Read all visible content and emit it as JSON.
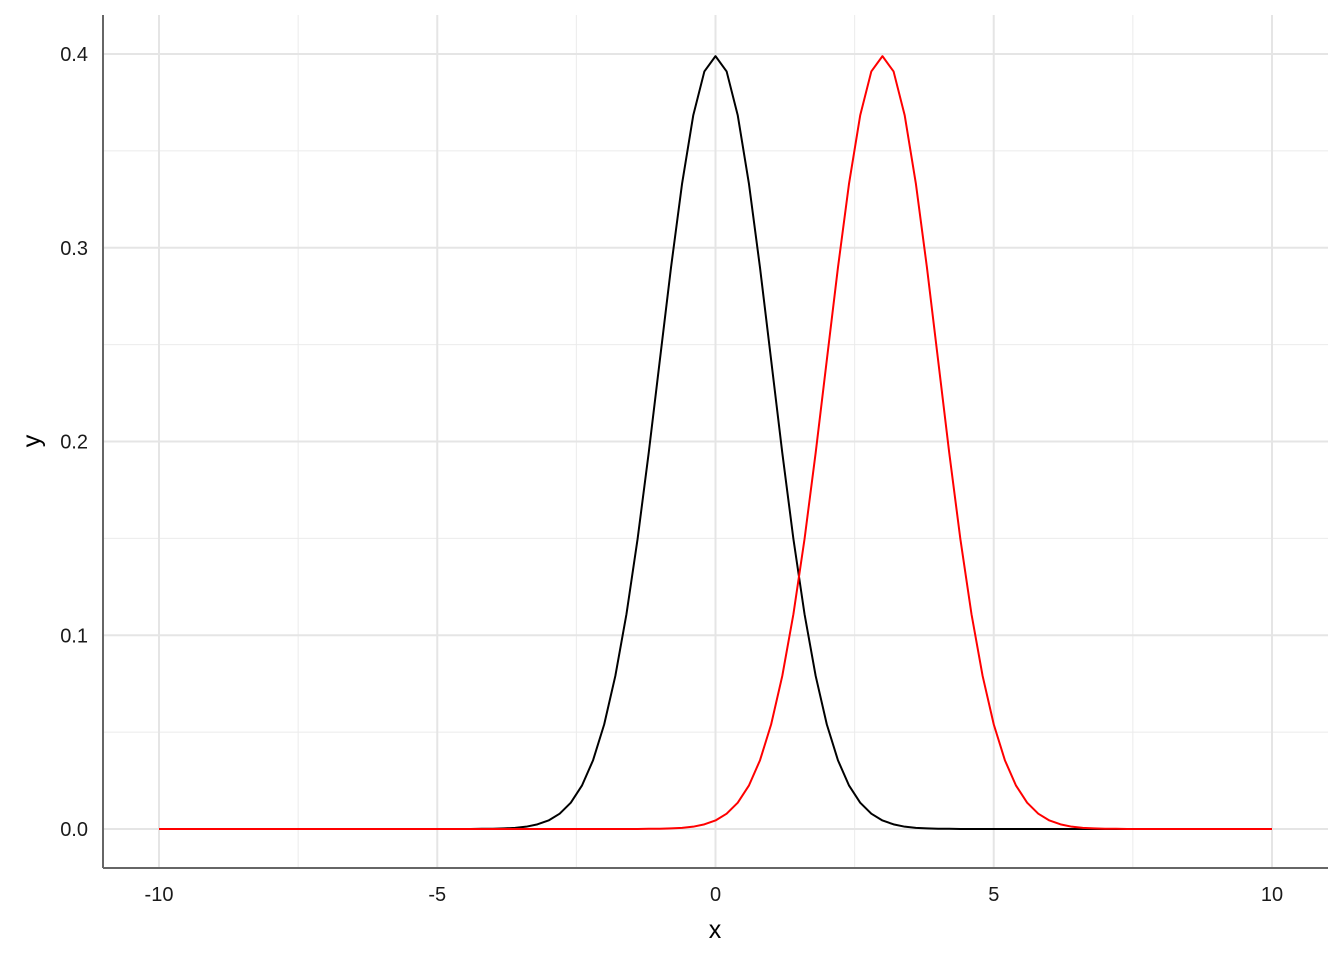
{
  "chart_data": {
    "type": "line",
    "xlabel": "x",
    "ylabel": "y",
    "xlim": [
      -11,
      11
    ],
    "ylim": [
      -0.02,
      0.418
    ],
    "x_ticks": [
      -10,
      -5,
      0,
      5,
      10
    ],
    "x_tick_labels": [
      "-10",
      "-5",
      "0",
      "5",
      "10"
    ],
    "y_ticks": [
      0,
      0.1,
      0.2,
      0.3,
      0.4
    ],
    "y_tick_labels": [
      "0.0",
      "0.1",
      "0.2",
      "0.3",
      "0.4"
    ],
    "grid": true,
    "legend": "none",
    "x": [
      -10,
      -9.8,
      -9.6,
      -9.4,
      -9.2,
      -9,
      -8.8,
      -8.6,
      -8.4,
      -8.2,
      -8,
      -7.8,
      -7.6,
      -7.4,
      -7.2,
      -7,
      -6.8,
      -6.6,
      -6.4,
      -6.2,
      -6,
      -5.8,
      -5.6,
      -5.4,
      -5.2,
      -5,
      -4.8,
      -4.6,
      -4.4,
      -4.2,
      -4,
      -3.8,
      -3.6,
      -3.4,
      -3.2,
      -3,
      -2.8,
      -2.6,
      -2.4,
      -2.2,
      -2,
      -1.8,
      -1.6,
      -1.4,
      -1.2,
      -1,
      -0.8,
      -0.6,
      -0.4,
      -0.2,
      0,
      0.2,
      0.4,
      0.6,
      0.8,
      1,
      1.2,
      1.4,
      1.6,
      1.8,
      2,
      2.2,
      2.4,
      2.6,
      2.8,
      3,
      3.2,
      3.4,
      3.6,
      3.8,
      4,
      4.2,
      4.4,
      4.6,
      4.8,
      5,
      5.2,
      5.4,
      5.6,
      5.8,
      6,
      6.2,
      6.4,
      6.6,
      6.8,
      7,
      7.2,
      7.4,
      7.6,
      7.8,
      8,
      8.2,
      8.4,
      8.6,
      8.8,
      9,
      9.2,
      9.4,
      9.6,
      9.8,
      10
    ],
    "series": [
      {
        "color": "#000000",
        "values": [
          0,
          0,
          0,
          0,
          0,
          0,
          0,
          0,
          0,
          0,
          0,
          0,
          0,
          0,
          0,
          0,
          0,
          0,
          0,
          0,
          0,
          0,
          0,
          0,
          0,
          0,
          0,
          0,
          0,
          0.0001,
          0.0001,
          0.0003,
          0.0006,
          0.0012,
          0.0024,
          0.0044,
          0.0079,
          0.0136,
          0.0224,
          0.0355,
          0.054,
          0.079,
          0.1109,
          0.1497,
          0.1942,
          0.242,
          0.2897,
          0.3332,
          0.3683,
          0.391,
          0.3989,
          0.391,
          0.3683,
          0.3332,
          0.2897,
          0.242,
          0.1942,
          0.1497,
          0.1109,
          0.079,
          0.054,
          0.0355,
          0.0224,
          0.0136,
          0.0079,
          0.0044,
          0.0024,
          0.0012,
          0.0006,
          0.0003,
          0.0001,
          0.0001,
          0,
          0,
          0,
          0,
          0,
          0,
          0,
          0,
          0,
          0,
          0,
          0,
          0,
          0,
          0,
          0,
          0,
          0,
          0,
          0,
          0,
          0,
          0,
          0,
          0,
          0,
          0,
          0,
          0
        ]
      },
      {
        "color": "#ff0000",
        "values": [
          0,
          0,
          0,
          0,
          0,
          0,
          0,
          0,
          0,
          0,
          0,
          0,
          0,
          0,
          0,
          0,
          0,
          0,
          0,
          0,
          0,
          0,
          0,
          0,
          0,
          0,
          0,
          0,
          0,
          0,
          0,
          0,
          0,
          0,
          0,
          0,
          0,
          0,
          0,
          0,
          0,
          0,
          0,
          0,
          0.0001,
          0.0001,
          0.0003,
          0.0006,
          0.0012,
          0.0024,
          0.0044,
          0.0079,
          0.0136,
          0.0224,
          0.0355,
          0.054,
          0.079,
          0.1109,
          0.1497,
          0.1942,
          0.242,
          0.2897,
          0.3332,
          0.3683,
          0.391,
          0.3989,
          0.391,
          0.3683,
          0.3332,
          0.2897,
          0.242,
          0.1942,
          0.1497,
          0.1109,
          0.079,
          0.054,
          0.0355,
          0.0224,
          0.0136,
          0.0079,
          0.0044,
          0.0024,
          0.0012,
          0.0006,
          0.0003,
          0.0001,
          0.0001,
          0,
          0,
          0,
          0,
          0,
          0,
          0,
          0,
          0,
          0,
          0,
          0,
          0,
          0
        ]
      }
    ]
  }
}
